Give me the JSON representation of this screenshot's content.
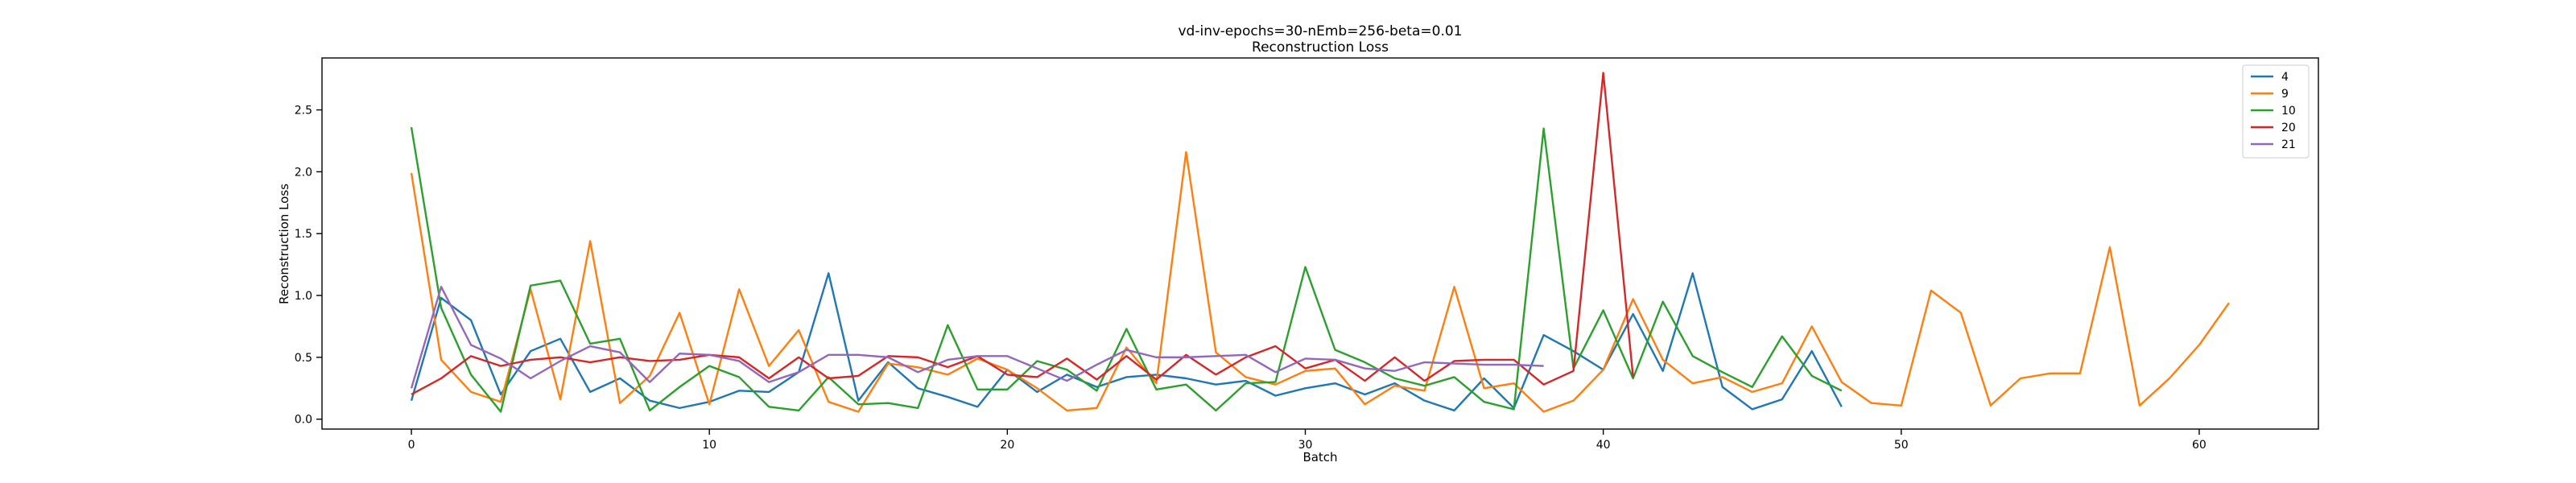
{
  "chart_data": {
    "type": "line",
    "title": "vd-inv-epochs=30-nEmb=256-beta=0.01",
    "subtitle": "Reconstruction Loss",
    "xlabel": "Batch",
    "ylabel": "Reconstruction Loss",
    "xlim": [
      -3,
      64
    ],
    "ylim": [
      -0.08,
      2.92
    ],
    "xticks": [
      0,
      10,
      20,
      30,
      40,
      50,
      60
    ],
    "yticks": [
      0.0,
      0.5,
      1.0,
      1.5,
      2.0,
      2.5
    ],
    "ytick_labels": [
      "0.0",
      "0.5",
      "1.0",
      "1.5",
      "2.0",
      "2.5"
    ],
    "grid": false,
    "legend_position": "top-right",
    "series": [
      {
        "name": "4",
        "color": "#1f77b4",
        "values": [
          0.15,
          0.98,
          0.8,
          0.2,
          0.55,
          0.65,
          0.22,
          0.33,
          0.15,
          0.09,
          0.14,
          0.23,
          0.22,
          0.38,
          1.18,
          0.15,
          0.46,
          0.25,
          0.18,
          0.1,
          0.4,
          0.22,
          0.36,
          0.26,
          0.34,
          0.36,
          0.33,
          0.28,
          0.31,
          0.19,
          0.25,
          0.29,
          0.2,
          0.29,
          0.15,
          0.07,
          0.33,
          0.09,
          0.68,
          0.55,
          0.4,
          0.85,
          0.39,
          1.18,
          0.26,
          0.08,
          0.16,
          0.55,
          0.1
        ]
      },
      {
        "name": "9",
        "color": "#ff7f0e",
        "values": [
          1.99,
          0.48,
          0.22,
          0.14,
          1.05,
          0.16,
          1.44,
          0.13,
          0.35,
          0.86,
          0.12,
          1.05,
          0.43,
          0.72,
          0.14,
          0.06,
          0.45,
          0.42,
          0.36,
          0.49,
          0.4,
          0.25,
          0.07,
          0.09,
          0.58,
          0.29,
          2.16,
          0.54,
          0.34,
          0.28,
          0.39,
          0.41,
          0.12,
          0.27,
          0.23,
          1.07,
          0.25,
          0.29,
          0.06,
          0.15,
          0.4,
          0.97,
          0.48,
          0.29,
          0.34,
          0.22,
          0.29,
          0.75,
          0.3,
          0.13,
          0.11,
          1.04,
          0.86,
          0.11,
          0.33,
          0.37,
          0.37,
          1.39,
          0.11,
          0.33,
          0.6,
          0.94
        ]
      },
      {
        "name": "10",
        "color": "#2ca02c",
        "values": [
          2.36,
          0.9,
          0.36,
          0.06,
          1.08,
          1.12,
          0.61,
          0.65,
          0.07,
          0.26,
          0.43,
          0.34,
          0.1,
          0.07,
          0.34,
          0.12,
          0.13,
          0.09,
          0.76,
          0.24,
          0.24,
          0.47,
          0.4,
          0.23,
          0.73,
          0.24,
          0.28,
          0.07,
          0.29,
          0.3,
          1.23,
          0.56,
          0.46,
          0.33,
          0.27,
          0.34,
          0.14,
          0.08,
          2.35,
          0.41,
          0.88,
          0.33,
          0.95,
          0.51,
          0.38,
          0.26,
          0.67,
          0.35,
          0.23
        ]
      },
      {
        "name": "20",
        "color": "#d62728",
        "values": [
          0.2,
          0.33,
          0.51,
          0.43,
          0.48,
          0.5,
          0.46,
          0.5,
          0.47,
          0.48,
          0.52,
          0.5,
          0.33,
          0.5,
          0.33,
          0.35,
          0.51,
          0.5,
          0.42,
          0.51,
          0.36,
          0.34,
          0.49,
          0.32,
          0.51,
          0.32,
          0.52,
          0.36,
          0.5,
          0.59,
          0.41,
          0.48,
          0.31,
          0.5,
          0.31,
          0.47,
          0.48,
          0.48,
          0.28,
          0.39,
          2.8,
          0.34
        ]
      },
      {
        "name": "21",
        "color": "#9467bd",
        "values": [
          0.25,
          1.07,
          0.6,
          0.49,
          0.33,
          0.47,
          0.59,
          0.54,
          0.3,
          0.53,
          0.52,
          0.47,
          0.3,
          0.38,
          0.52,
          0.52,
          0.5,
          0.38,
          0.48,
          0.51,
          0.51,
          0.41,
          0.31,
          0.44,
          0.56,
          0.5,
          0.5,
          0.51,
          0.52,
          0.38,
          0.49,
          0.48,
          0.41,
          0.39,
          0.46,
          0.45,
          0.44,
          0.44,
          0.43
        ]
      }
    ]
  }
}
